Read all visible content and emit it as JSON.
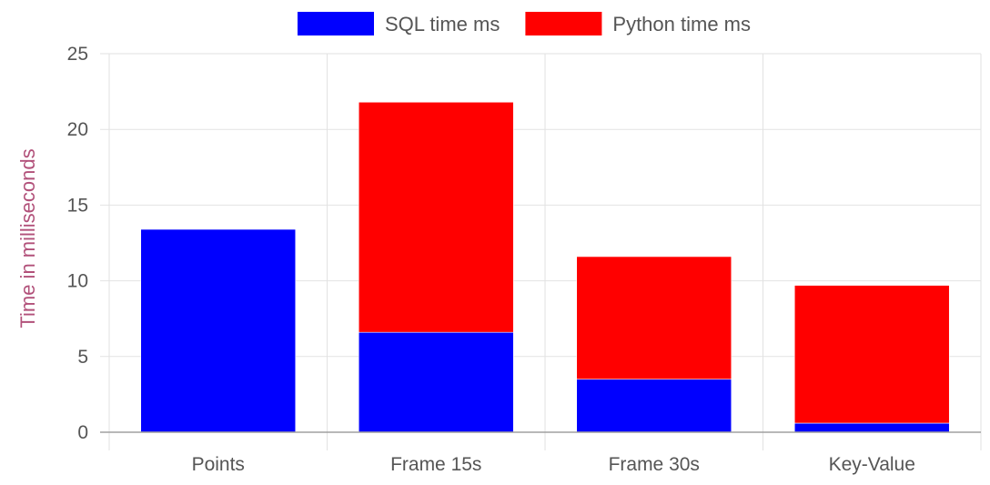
{
  "chart_data": {
    "type": "bar",
    "stacked": true,
    "categories": [
      "Points",
      "Frame 15s",
      "Frame 30s",
      "Key-Value"
    ],
    "series": [
      {
        "name": "SQL time ms",
        "values": [
          13.4,
          6.6,
          3.5,
          0.6
        ],
        "color": "#0000ff"
      },
      {
        "name": "Python time ms",
        "values": [
          0,
          15.2,
          8.1,
          9.1
        ],
        "color": "#ff0000"
      }
    ],
    "title": "",
    "xlabel": "",
    "ylabel": "Time in milliseconds",
    "ylabel_color": "#b2517a",
    "ylim": [
      0,
      25
    ],
    "yticks": [
      "0",
      "5",
      "10",
      "15",
      "20",
      "25"
    ],
    "grid": true,
    "legend_position": "top-center"
  }
}
